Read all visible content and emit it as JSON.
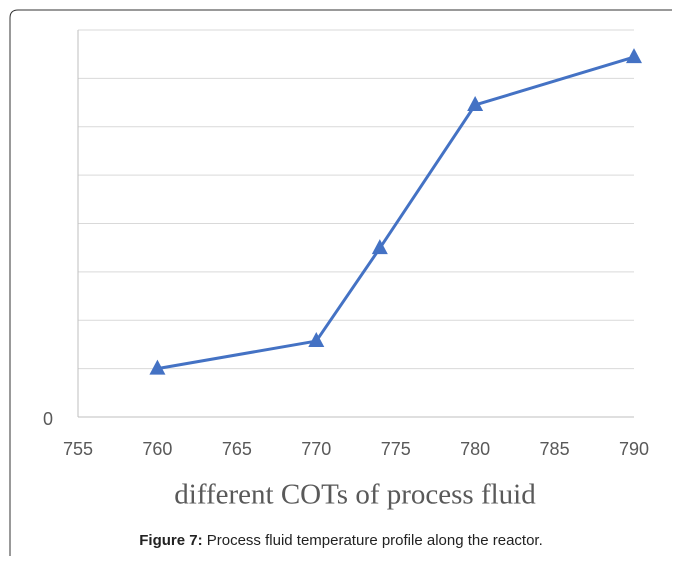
{
  "chart_data": {
    "type": "line",
    "xlabel": "different COTs of process fluid",
    "caption_label": "Figure 7:",
    "caption": " Process fluid temperature profile along the reactor.",
    "x": [
      760,
      770,
      774,
      780,
      790
    ],
    "series": [
      {
        "color": "#4472c4",
        "values": [
          1,
          1.57,
          3.49,
          6.45,
          7.44
        ]
      }
    ],
    "xlim": [
      755,
      790
    ],
    "xticks": [
      755,
      760,
      765,
      770,
      775,
      780,
      785,
      790
    ],
    "ylim": [
      0,
      8
    ],
    "yticks": [
      0
    ],
    "ygrid": [
      1,
      2,
      3,
      4,
      5,
      6,
      7,
      8
    ]
  }
}
